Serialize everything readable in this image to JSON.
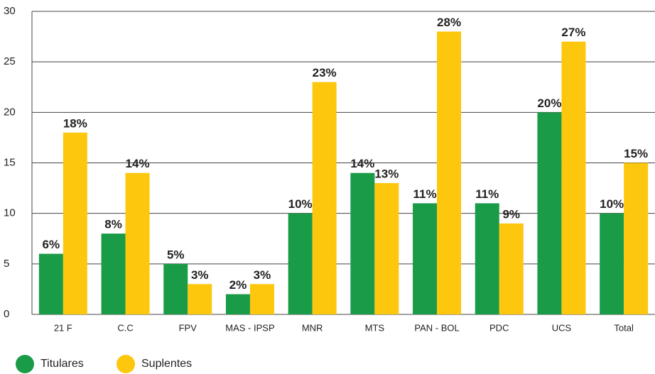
{
  "chart_data": {
    "type": "bar",
    "categories": [
      "21 F",
      "C.C",
      "FPV",
      "MAS - IPSP",
      "MNR",
      "MTS",
      "PAN - BOL",
      "PDC",
      "UCS",
      "Total"
    ],
    "series": [
      {
        "name": "Titulares",
        "color": "#1a9b48",
        "values": [
          6,
          8,
          5,
          2,
          10,
          14,
          11,
          11,
          20,
          10
        ],
        "value_labels": [
          "6%",
          "8%",
          "5%",
          "2%",
          "10%",
          "14%",
          "11%",
          "11%",
          "20%",
          "10%"
        ]
      },
      {
        "name": "Suplentes",
        "color": "#fcc70c",
        "values": [
          18,
          14,
          3,
          3,
          23,
          13,
          28,
          9,
          27,
          15
        ],
        "value_labels": [
          "18%",
          "14%",
          "3%",
          "3%",
          "23%",
          "13%",
          "28%",
          "9%",
          "27%",
          "15%"
        ]
      }
    ],
    "ylim": [
      0,
      30
    ],
    "yticks": [
      0,
      5,
      10,
      15,
      20,
      25,
      30
    ],
    "grid": true,
    "legend": "bottom-left"
  }
}
